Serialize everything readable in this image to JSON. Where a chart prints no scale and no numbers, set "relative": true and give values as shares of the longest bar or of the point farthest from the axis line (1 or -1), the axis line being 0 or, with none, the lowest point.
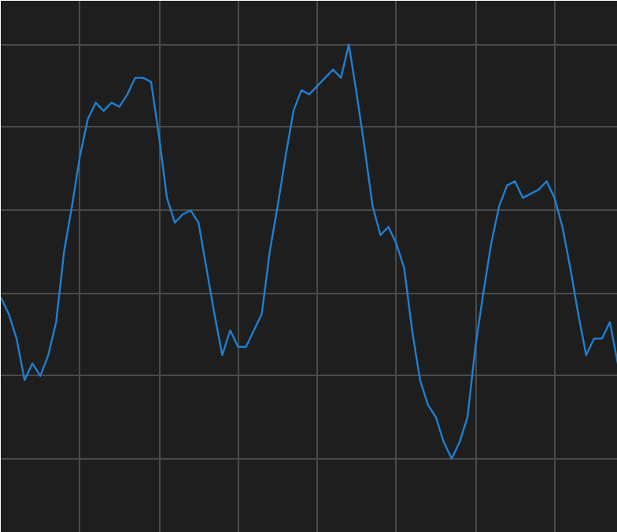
{
  "chart_data": {
    "type": "line",
    "relative": true,
    "grid": true,
    "categories": [
      null,
      null,
      null,
      null,
      null,
      null,
      null,
      null,
      null,
      null,
      null,
      null,
      null,
      null,
      null,
      null,
      null,
      null,
      null,
      null,
      null,
      null,
      null,
      null,
      null,
      null,
      null,
      null,
      null,
      null,
      null,
      null,
      null,
      null,
      null,
      null,
      null,
      null,
      null,
      null,
      null,
      null,
      null,
      null,
      null,
      null,
      null,
      null,
      null,
      null,
      null,
      null,
      null,
      null,
      null,
      null,
      null,
      null,
      null,
      null,
      null,
      null,
      null,
      null,
      null,
      null,
      null,
      null,
      null,
      null,
      null,
      null,
      null,
      null,
      null,
      null,
      null,
      null,
      null
    ],
    "series": [
      {
        "color": "#1f7fd0",
        "values": [
          0.39,
          0.35,
          0.29,
          0.19,
          0.23,
          0.2,
          0.25,
          0.33,
          0.5,
          0.61,
          0.73,
          0.82,
          0.86,
          0.84,
          0.86,
          0.85,
          0.88,
          0.92,
          0.92,
          0.91,
          0.78,
          0.63,
          0.57,
          0.59,
          0.6,
          0.57,
          0.46,
          0.35,
          0.25,
          0.31,
          0.27,
          0.27,
          0.31,
          0.35,
          0.5,
          0.61,
          0.73,
          0.84,
          0.89,
          0.88,
          0.9,
          0.92,
          0.94,
          0.92,
          1.0,
          0.88,
          0.75,
          0.61,
          0.54,
          0.56,
          0.52,
          0.46,
          0.31,
          0.19,
          0.13,
          0.1,
          0.04,
          0.0,
          0.04,
          0.1,
          0.27,
          0.4,
          0.52,
          0.61,
          0.66,
          0.67,
          0.63,
          0.64,
          0.65,
          0.67,
          0.63,
          0.56,
          0.46,
          0.35,
          0.25,
          0.29,
          0.29,
          0.33,
          0.23
        ]
      }
    ]
  }
}
